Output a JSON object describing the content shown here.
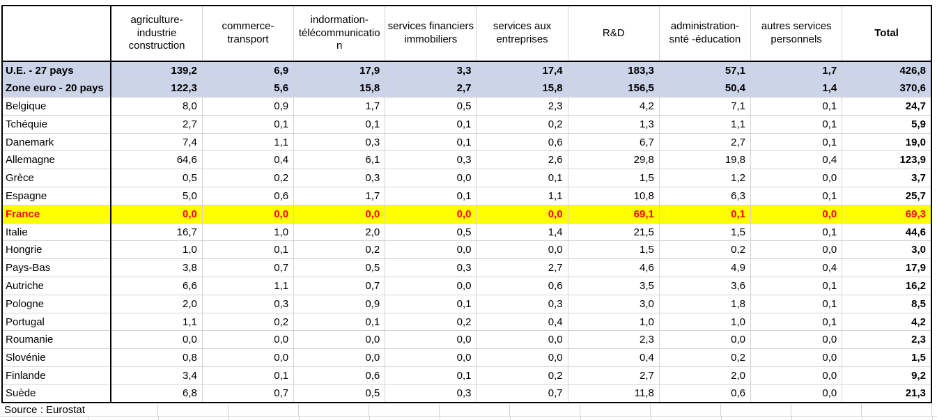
{
  "chart_data": {
    "type": "table",
    "corner_label": "",
    "columns": [
      "agriculture-industrie construction",
      "commerce-transport",
      "indormation-télécommunication",
      "services financiers immobiliers",
      "services aux entreprises",
      "R&D",
      "administration-snté -éducation",
      "autres services personnels",
      "Total"
    ],
    "rows": [
      {
        "label": "U.E. - 27 pays",
        "style": "aggregate",
        "values": [
          "139,2",
          "6,9",
          "17,9",
          "3,3",
          "17,4",
          "183,3",
          "57,1",
          "1,7",
          "426,8"
        ]
      },
      {
        "label": "Zone euro - 20 pays",
        "style": "aggregate",
        "values": [
          "122,3",
          "5,6",
          "15,8",
          "2,7",
          "15,8",
          "156,5",
          "50,4",
          "1,4",
          "370,6"
        ]
      },
      {
        "label": "Belgique",
        "style": "normal",
        "values": [
          "8,0",
          "0,9",
          "1,7",
          "0,5",
          "2,3",
          "4,2",
          "7,1",
          "0,1",
          "24,7"
        ]
      },
      {
        "label": "Tchéquie",
        "style": "normal",
        "values": [
          "2,7",
          "0,1",
          "0,1",
          "0,1",
          "0,2",
          "1,3",
          "1,1",
          "0,1",
          "5,9"
        ]
      },
      {
        "label": "Danemark",
        "style": "normal",
        "values": [
          "7,4",
          "1,1",
          "0,3",
          "0,1",
          "0,6",
          "6,7",
          "2,7",
          "0,1",
          "19,0"
        ]
      },
      {
        "label": "Allemagne",
        "style": "normal",
        "values": [
          "64,6",
          "0,4",
          "6,1",
          "0,3",
          "2,6",
          "29,8",
          "19,8",
          "0,4",
          "123,9"
        ]
      },
      {
        "label": "Grèce",
        "style": "normal",
        "values": [
          "0,5",
          "0,2",
          "0,3",
          "0,0",
          "0,1",
          "1,5",
          "1,2",
          "0,0",
          "3,7"
        ]
      },
      {
        "label": "Espagne",
        "style": "normal",
        "values": [
          "5,0",
          "0,6",
          "1,7",
          "0,1",
          "1,1",
          "10,8",
          "6,3",
          "0,1",
          "25,7"
        ]
      },
      {
        "label": "France",
        "style": "highlight",
        "values": [
          "0,0",
          "0,0",
          "0,0",
          "0,0",
          "0,0",
          "69,1",
          "0,1",
          "0,0",
          "69,3"
        ]
      },
      {
        "label": "Italie",
        "style": "normal",
        "values": [
          "16,7",
          "1,0",
          "2,0",
          "0,5",
          "1,4",
          "21,5",
          "1,5",
          "0,1",
          "44,6"
        ]
      },
      {
        "label": "Hongrie",
        "style": "normal",
        "values": [
          "1,0",
          "0,1",
          "0,2",
          "0,0",
          "0,0",
          "1,5",
          "0,2",
          "0,0",
          "3,0"
        ]
      },
      {
        "label": "Pays-Bas",
        "style": "normal",
        "values": [
          "3,8",
          "0,7",
          "0,5",
          "0,3",
          "2,7",
          "4,6",
          "4,9",
          "0,4",
          "17,9"
        ]
      },
      {
        "label": "Autriche",
        "style": "normal",
        "values": [
          "6,6",
          "1,1",
          "0,7",
          "0,0",
          "0,6",
          "3,5",
          "3,6",
          "0,1",
          "16,2"
        ]
      },
      {
        "label": "Pologne",
        "style": "normal",
        "values": [
          "2,0",
          "0,3",
          "0,9",
          "0,1",
          "0,3",
          "3,0",
          "1,8",
          "0,1",
          "8,5"
        ]
      },
      {
        "label": "Portugal",
        "style": "normal",
        "values": [
          "1,1",
          "0,2",
          "0,1",
          "0,2",
          "0,4",
          "1,0",
          "1,0",
          "0,1",
          "4,2"
        ]
      },
      {
        "label": "Roumanie",
        "style": "normal",
        "values": [
          "0,0",
          "0,0",
          "0,0",
          "0,0",
          "0,0",
          "2,3",
          "0,0",
          "0,0",
          "2,3"
        ]
      },
      {
        "label": "Slovénie",
        "style": "normal",
        "values": [
          "0,8",
          "0,0",
          "0,0",
          "0,0",
          "0,0",
          "0,4",
          "0,2",
          "0,0",
          "1,5"
        ]
      },
      {
        "label": "Finlande",
        "style": "normal",
        "values": [
          "3,4",
          "0,1",
          "0,6",
          "0,1",
          "0,2",
          "2,7",
          "2,0",
          "0,0",
          "9,2"
        ]
      },
      {
        "label": "Suède",
        "style": "normal",
        "values": [
          "6,8",
          "0,7",
          "0,5",
          "0,3",
          "0,7",
          "11,8",
          "0,6",
          "0,0",
          "21,3"
        ]
      }
    ],
    "source_note": "Source : Eurostat"
  },
  "colors": {
    "aggregate_row_bg": "#ccd4e9",
    "highlight_row_bg": "#ffff00",
    "highlight_text": "#ff0000",
    "header_bg": "#ffffff",
    "gridline": "#d3d3d3",
    "table_border": "#000000"
  }
}
